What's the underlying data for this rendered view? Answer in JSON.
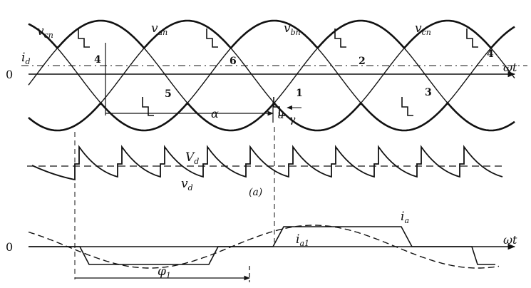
{
  "labels": {
    "v_cn_left": {
      "base": "v",
      "sub": "cn"
    },
    "v_an": {
      "base": "v",
      "sub": "an"
    },
    "v_bn": {
      "base": "v",
      "sub": "bn"
    },
    "v_cn_right": {
      "base": "v",
      "sub": "cn"
    },
    "i_d": {
      "base": "i",
      "sub": "d"
    },
    "zero_top": "0",
    "zero_bottom": "0",
    "omega_t_top": "ωt",
    "omega_t_bottom": "ωt",
    "alpha": "α",
    "u": "u",
    "gamma": "γ",
    "V_d": {
      "base": "V",
      "sub": "d"
    },
    "v_d": {
      "base": "v",
      "sub": "d"
    },
    "caption_a": "(a)",
    "i_a": {
      "base": "i",
      "sub": "a"
    },
    "i_a1": {
      "base": "i",
      "sub": "a1"
    },
    "phi_1": {
      "base": "φ",
      "sub": "1"
    }
  },
  "thyristor_numbers": [
    "4",
    "6",
    "5",
    "1",
    "2",
    "3",
    "4"
  ],
  "colors": {
    "ink": "#111111",
    "paper": "#ffffff"
  }
}
